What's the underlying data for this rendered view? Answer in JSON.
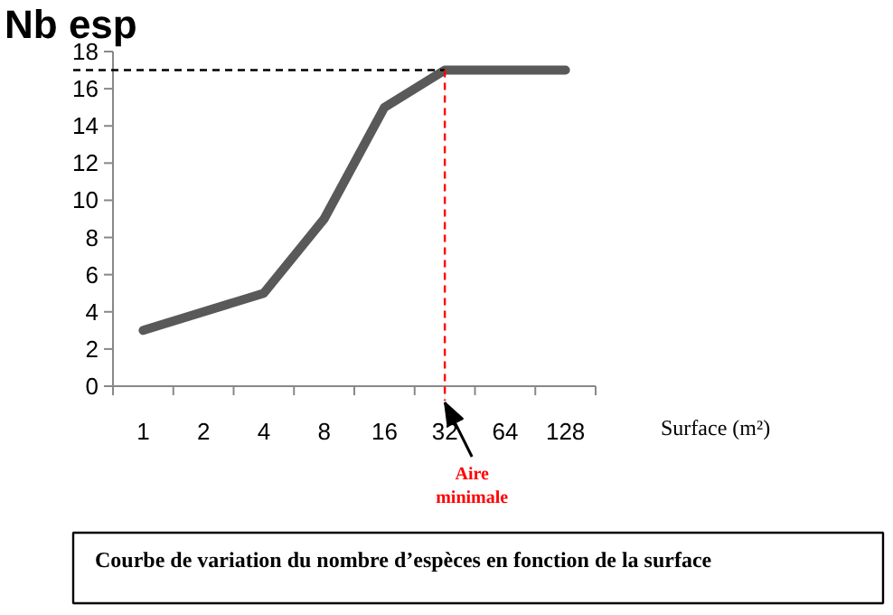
{
  "chart_data": {
    "type": "line",
    "ylabel": "Nb esp",
    "xlabel": "Surface (m²)",
    "categories": [
      "1",
      "2",
      "4",
      "8",
      "16",
      "32",
      "64",
      "128"
    ],
    "series": [
      {
        "color": "#595959",
        "values": [
          3,
          4,
          5,
          9,
          15,
          17,
          17,
          17
        ]
      }
    ],
    "ylim": [
      0,
      18
    ],
    "yticks": [
      0,
      2,
      4,
      6,
      8,
      10,
      12,
      14,
      16,
      18
    ],
    "grid": false,
    "ref_lines": [
      {
        "axis": "y",
        "value": 17,
        "color": "#000000",
        "line_style": "dashed"
      },
      {
        "axis": "x",
        "value": "32",
        "color": "#ff0000",
        "line_style": "dashed"
      }
    ],
    "annotations": [
      "Aire minimale",
      "Courbe de variation du nombre d’espèces en fonction de la surface"
    ]
  }
}
